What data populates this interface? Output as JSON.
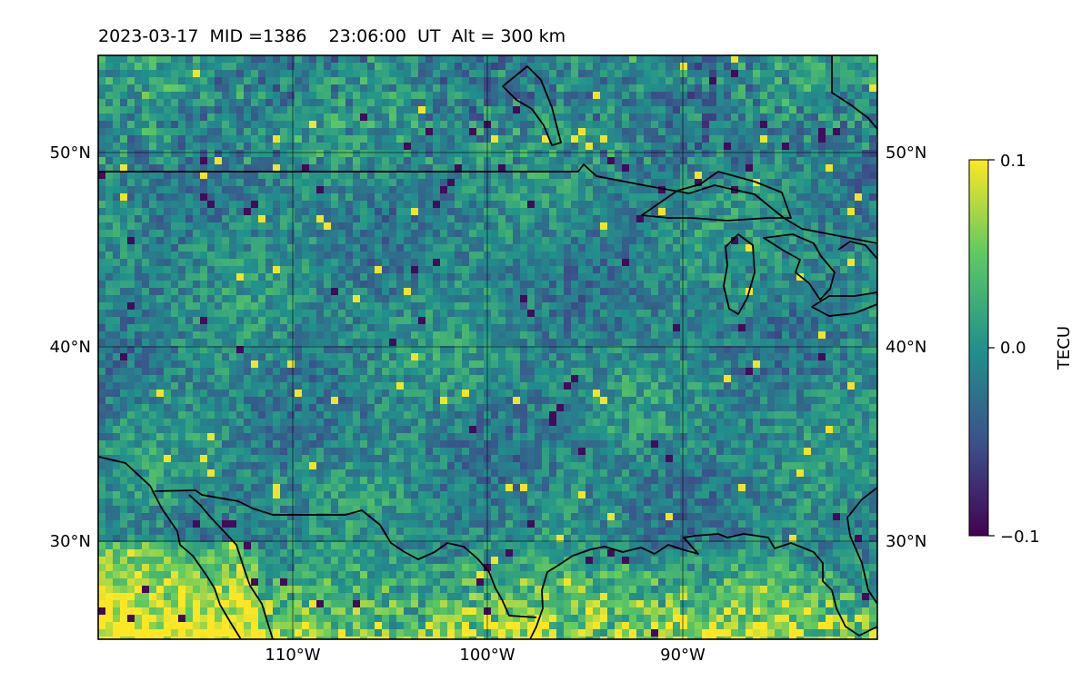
{
  "header": {
    "title": "2023-03-17  MID =1386    23:06:00  UT  Alt = 300 km"
  },
  "map": {
    "extent": {
      "lon": [
        -120,
        -80
      ],
      "lat": [
        25,
        55
      ]
    },
    "gridlines": {
      "lons": [
        -110,
        -100,
        -90
      ],
      "lats": [
        30,
        40,
        50
      ]
    },
    "lon_labels": [
      "110°W",
      "100°W",
      "90°W"
    ],
    "lat_labels": [
      "30°N",
      "40°N",
      "50°N"
    ],
    "coastline_color": "#000000",
    "field": "TEC perturbation (dTEC)",
    "colormap": "viridis"
  },
  "colorbar": {
    "label": "TECU",
    "min": -0.1,
    "max": 0.1,
    "ticks": [
      {
        "value": 0.1,
        "label": "0.1"
      },
      {
        "value": 0.0,
        "label": "0.0"
      },
      {
        "value": -0.1,
        "label": "−0.1"
      }
    ],
    "colors": [
      "#440154",
      "#3b528b",
      "#21918c",
      "#5ec962",
      "#fde725"
    ]
  }
}
